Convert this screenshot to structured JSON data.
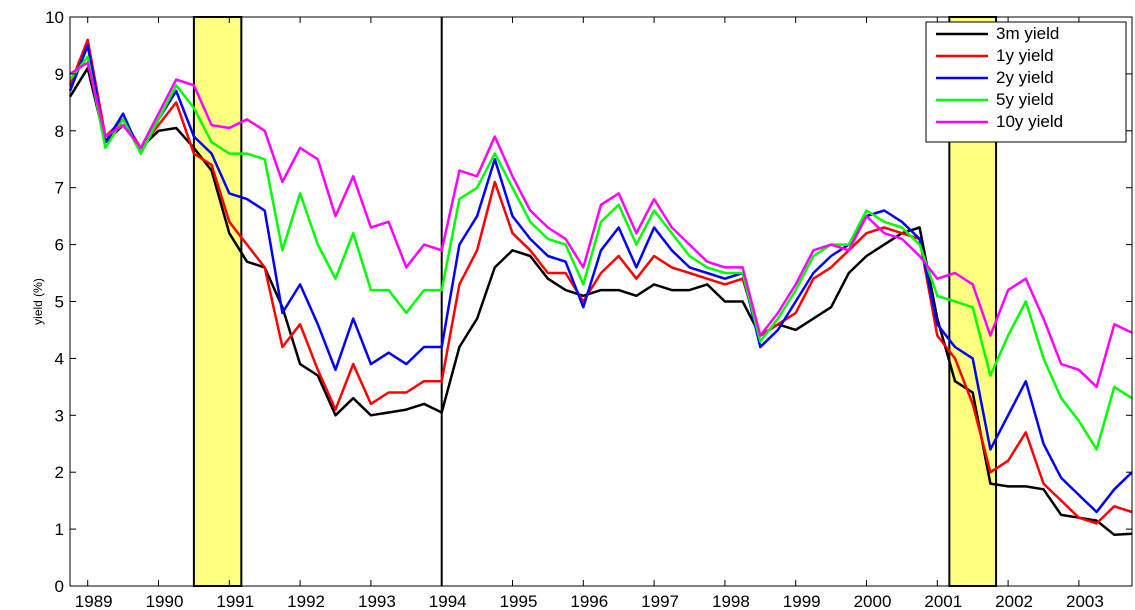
{
  "chart_data": {
    "type": "line",
    "title": "",
    "xlabel": "",
    "ylabel": "yield (%)",
    "xlim": [
      1988.75,
      2003.75
    ],
    "ylim": [
      0,
      10
    ],
    "yticks": [
      0,
      1,
      2,
      3,
      4,
      5,
      6,
      7,
      8,
      9,
      10
    ],
    "xticks": [
      1989,
      1990,
      1991,
      1992,
      1993,
      1994,
      1995,
      1996,
      1997,
      1998,
      1999,
      2000,
      2001,
      2002,
      2003
    ],
    "legend_position": "top-right",
    "shaded_periods": [
      [
        1990.5,
        1991.17
      ],
      [
        2001.17,
        2001.83
      ]
    ],
    "vertical_lines": [
      1994.0
    ],
    "shade_color": "#ffff80",
    "x": [
      1988.75,
      1989.0,
      1989.25,
      1989.5,
      1989.75,
      1990.0,
      1990.25,
      1990.5,
      1990.75,
      1991.0,
      1991.25,
      1991.5,
      1991.75,
      1992.0,
      1992.25,
      1992.5,
      1992.75,
      1993.0,
      1993.25,
      1993.5,
      1993.75,
      1994.0,
      1994.25,
      1994.5,
      1994.75,
      1995.0,
      1995.25,
      1995.5,
      1995.75,
      1996.0,
      1996.25,
      1996.5,
      1996.75,
      1997.0,
      1997.25,
      1997.5,
      1997.75,
      1998.0,
      1998.25,
      1998.5,
      1998.75,
      1999.0,
      1999.25,
      1999.5,
      1999.75,
      2000.0,
      2000.25,
      2000.5,
      2000.75,
      2001.0,
      2001.25,
      2001.5,
      2001.75,
      2002.0,
      2002.25,
      2002.5,
      2002.75,
      2003.0,
      2003.25,
      2003.5,
      2003.75
    ],
    "series": [
      {
        "name": "3m yield",
        "color": "#000000",
        "values": [
          8.6,
          9.1,
          7.8,
          8.1,
          7.7,
          8.0,
          8.05,
          7.7,
          7.3,
          6.2,
          5.7,
          5.6,
          4.9,
          3.9,
          3.7,
          3.0,
          3.3,
          3.0,
          3.05,
          3.1,
          3.2,
          3.05,
          4.2,
          4.7,
          5.6,
          5.9,
          5.8,
          5.4,
          5.2,
          5.1,
          5.2,
          5.2,
          5.1,
          5.3,
          5.2,
          5.2,
          5.3,
          5.0,
          5.0,
          4.4,
          4.6,
          4.5,
          4.7,
          4.9,
          5.5,
          5.8,
          6.0,
          6.2,
          6.3,
          4.7,
          3.6,
          3.4,
          1.8,
          1.75,
          1.75,
          1.7,
          1.25,
          1.2,
          1.15,
          0.9,
          0.92
        ]
      },
      {
        "name": "1y yield",
        "color": "#ff0000",
        "values": [
          8.8,
          9.6,
          7.9,
          8.2,
          7.7,
          8.1,
          8.5,
          7.6,
          7.4,
          6.4,
          6.0,
          5.6,
          4.2,
          4.6,
          3.8,
          3.1,
          3.9,
          3.2,
          3.4,
          3.4,
          3.6,
          3.6,
          5.3,
          5.9,
          7.1,
          6.2,
          5.9,
          5.5,
          5.5,
          5.0,
          5.5,
          5.8,
          5.4,
          5.8,
          5.6,
          5.5,
          5.4,
          5.3,
          5.4,
          4.4,
          4.6,
          4.8,
          5.4,
          5.6,
          5.9,
          6.2,
          6.3,
          6.2,
          6.1,
          4.4,
          4.0,
          3.2,
          2.0,
          2.2,
          2.7,
          1.8,
          1.5,
          1.2,
          1.1,
          1.4,
          1.3
        ]
      },
      {
        "name": "2y yield",
        "color": "#0000ff",
        "values": [
          8.7,
          9.5,
          7.8,
          8.3,
          7.6,
          8.2,
          8.7,
          7.9,
          7.6,
          6.9,
          6.8,
          6.6,
          4.8,
          5.3,
          4.6,
          3.8,
          4.7,
          3.9,
          4.1,
          3.9,
          4.2,
          4.2,
          6.0,
          6.5,
          7.5,
          6.5,
          6.1,
          5.8,
          5.7,
          4.9,
          5.9,
          6.3,
          5.6,
          6.3,
          5.9,
          5.6,
          5.5,
          5.4,
          5.5,
          4.2,
          4.5,
          5.0,
          5.5,
          5.8,
          6.0,
          6.5,
          6.6,
          6.4,
          6.1,
          4.6,
          4.2,
          4.0,
          2.4,
          3.0,
          3.6,
          2.5,
          1.9,
          1.6,
          1.3,
          1.7,
          2.0
        ]
      },
      {
        "name": "5y yield",
        "color": "#00ff00",
        "values": [
          8.9,
          9.3,
          7.7,
          8.2,
          7.6,
          8.2,
          8.8,
          8.4,
          7.8,
          7.6,
          7.6,
          7.5,
          5.9,
          6.9,
          6.0,
          5.4,
          6.2,
          5.2,
          5.2,
          4.8,
          5.2,
          5.2,
          6.8,
          7.0,
          7.6,
          7.0,
          6.4,
          6.1,
          6.0,
          5.3,
          6.4,
          6.7,
          6.0,
          6.6,
          6.2,
          5.8,
          5.6,
          5.5,
          5.5,
          4.3,
          4.7,
          5.2,
          5.8,
          6.0,
          6.0,
          6.6,
          6.4,
          6.3,
          6.0,
          5.1,
          5.0,
          4.9,
          3.7,
          4.4,
          5.0,
          4.0,
          3.3,
          2.9,
          2.4,
          3.5,
          3.3
        ]
      },
      {
        "name": "10y yield",
        "color": "#ff00ff",
        "values": [
          9.0,
          9.2,
          7.9,
          8.1,
          7.7,
          8.3,
          8.9,
          8.8,
          8.1,
          8.05,
          8.2,
          8.0,
          7.1,
          7.7,
          7.5,
          6.5,
          7.2,
          6.3,
          6.4,
          5.6,
          6.0,
          5.9,
          7.3,
          7.2,
          7.9,
          7.2,
          6.6,
          6.3,
          6.1,
          5.6,
          6.7,
          6.9,
          6.2,
          6.8,
          6.3,
          6.0,
          5.7,
          5.6,
          5.6,
          4.4,
          4.8,
          5.3,
          5.9,
          6.0,
          5.9,
          6.5,
          6.2,
          6.1,
          5.8,
          5.4,
          5.5,
          5.3,
          4.4,
          5.2,
          5.4,
          4.7,
          3.9,
          3.8,
          3.5,
          4.6,
          4.45
        ]
      }
    ]
  }
}
